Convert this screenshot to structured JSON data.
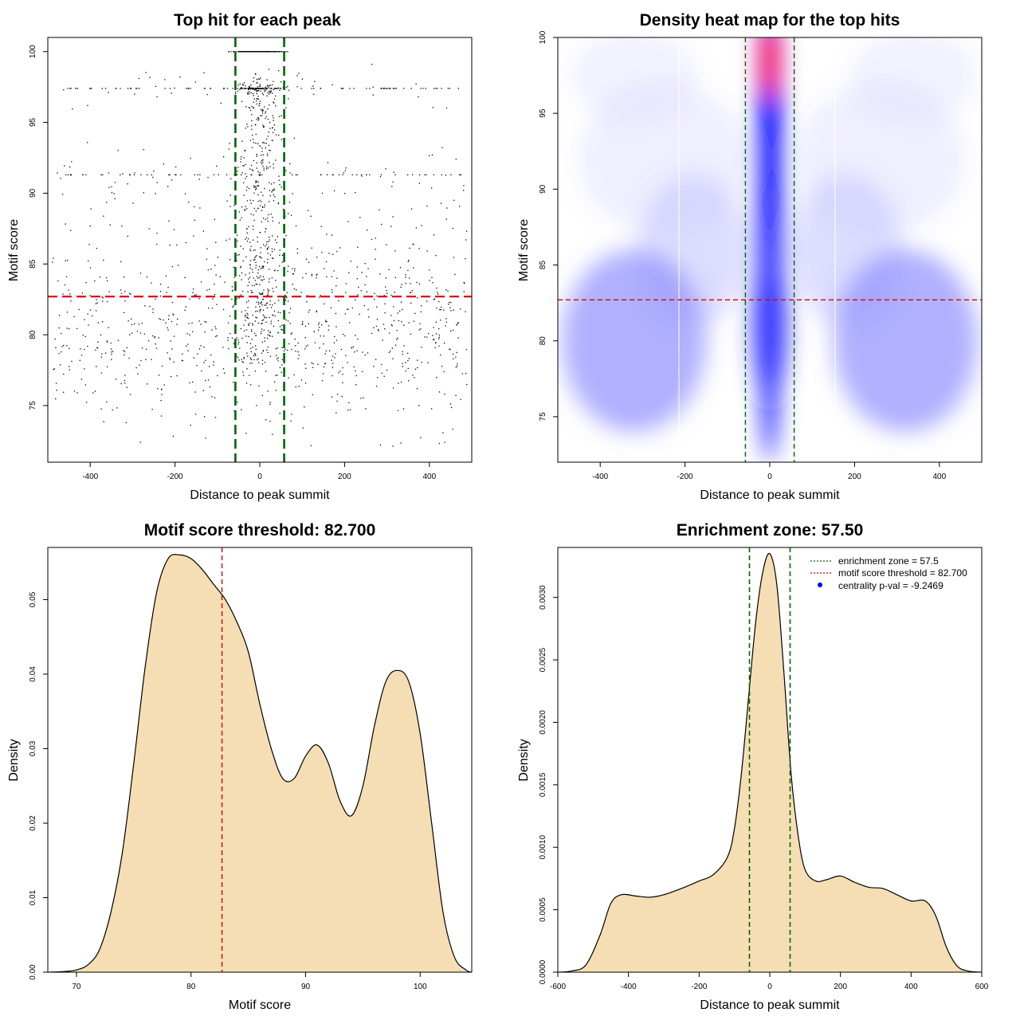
{
  "chart_data": [
    {
      "type": "scatter",
      "title": "Top hit for each peak",
      "xlabel": "Distance to peak summit",
      "ylabel": "Motif score",
      "xlim": [
        -500,
        500
      ],
      "ylim": [
        71,
        101
      ],
      "xticks": [
        -400,
        -200,
        0,
        200,
        400
      ],
      "yticks": [
        75,
        80,
        85,
        90,
        95,
        100
      ],
      "threshold_y": 82.7,
      "enrichment_x": [
        -57.5,
        57.5
      ],
      "point_count_estimate": 2000,
      "note_points": "dense band of points between -57.5 and 57.5; horizontal stripes at scores 100, 97.4, 91.3",
      "colors": {
        "points": "#000000",
        "threshold": "#dd0000",
        "zone": "#006400"
      }
    },
    {
      "type": "heatmap",
      "title": "Density heat map for the top hits",
      "xlabel": "Distance to peak summit",
      "ylabel": "Motif score",
      "xlim": [
        -500,
        500
      ],
      "ylim": [
        72,
        100
      ],
      "xticks": [
        -400,
        -200,
        0,
        200,
        400
      ],
      "yticks": [
        75,
        80,
        85,
        90,
        95,
        100
      ],
      "threshold_y": 82.7,
      "enrichment_x": [
        -57.5,
        57.5
      ],
      "peak": {
        "x": 0,
        "y": 98.5,
        "color": "#ff0000"
      },
      "colors": {
        "low": "#ffffff",
        "mid": "#0000ff",
        "high": "#ff0000",
        "threshold": "#dd0000",
        "zone": "#006400"
      }
    },
    {
      "type": "area",
      "title": "Motif score threshold: 82.700",
      "xlabel": "Motif score",
      "ylabel": "Density",
      "xlim": [
        67.5,
        104.5
      ],
      "ylim": [
        0,
        0.057
      ],
      "xticks": [
        70,
        80,
        90,
        100
      ],
      "yticks": [
        0.0,
        0.01,
        0.02,
        0.03,
        0.04,
        0.05
      ],
      "ytick_labels": [
        "0.00",
        "0.01",
        "0.02",
        "0.03",
        "0.04",
        "0.05"
      ],
      "threshold_x": 82.7,
      "x": [
        67.5,
        69,
        70,
        71,
        72,
        73,
        74,
        75,
        76,
        77,
        78,
        79,
        80,
        81,
        82,
        83,
        84,
        85,
        86,
        87,
        88,
        89,
        90,
        91,
        92,
        93,
        94,
        95,
        96,
        97,
        98,
        99,
        100,
        101,
        102,
        103,
        104,
        104.5
      ],
      "values": [
        0.0,
        0.0001,
        0.0003,
        0.001,
        0.003,
        0.008,
        0.016,
        0.028,
        0.041,
        0.051,
        0.0555,
        0.056,
        0.0555,
        0.054,
        0.052,
        0.05,
        0.047,
        0.043,
        0.036,
        0.03,
        0.026,
        0.026,
        0.029,
        0.0305,
        0.028,
        0.023,
        0.021,
        0.025,
        0.033,
        0.039,
        0.0405,
        0.039,
        0.032,
        0.02,
        0.008,
        0.002,
        0.0003,
        0.0
      ],
      "colors": {
        "fill": "#f5deb3",
        "line": "#000000",
        "threshold": "#dd0000"
      }
    },
    {
      "type": "area",
      "title": "Enrichment zone: 57.50",
      "xlabel": "Distance to peak summit",
      "ylabel": "Density",
      "xlim": [
        -600,
        600
      ],
      "ylim": [
        0,
        0.0034
      ],
      "xticks": [
        -600,
        -400,
        -200,
        0,
        200,
        400,
        600
      ],
      "yticks": [
        0.0,
        0.0005,
        0.001,
        0.0015,
        0.002,
        0.0025,
        0.003
      ],
      "ytick_labels": [
        "0.0000",
        "0.0005",
        "0.0010",
        "0.0015",
        "0.0020",
        "0.0025",
        "0.0030"
      ],
      "enrichment_x": [
        -57.5,
        57.5
      ],
      "x": [
        -600,
        -560,
        -520,
        -480,
        -450,
        -420,
        -380,
        -340,
        -300,
        -250,
        -200,
        -160,
        -120,
        -100,
        -80,
        -60,
        -40,
        -20,
        0,
        20,
        40,
        60,
        80,
        100,
        130,
        160,
        200,
        240,
        280,
        320,
        360,
        400,
        440,
        470,
        500,
        530,
        560,
        600
      ],
      "values": [
        0.0,
        1e-05,
        6e-05,
        0.0003,
        0.00055,
        0.00062,
        0.00061,
        0.0006,
        0.00062,
        0.00067,
        0.00073,
        0.00078,
        0.00092,
        0.00115,
        0.0016,
        0.0022,
        0.0028,
        0.0032,
        0.00335,
        0.0031,
        0.0024,
        0.0016,
        0.0011,
        0.00082,
        0.00073,
        0.00074,
        0.00077,
        0.00072,
        0.00068,
        0.00067,
        0.00062,
        0.00057,
        0.00057,
        0.00045,
        0.0002,
        5e-05,
        1e-05,
        0.0
      ],
      "legend": {
        "placement": "top-right",
        "entries": [
          {
            "label": "enrichment zone = 57.5",
            "color": "#006400",
            "kind": "dotted-line"
          },
          {
            "label": "motif score threshold = 82.700",
            "color": "#dd0000",
            "kind": "dotted-line"
          },
          {
            "label": "centrality p-val = -9.2469",
            "color": "#0000ff",
            "kind": "point"
          }
        ]
      },
      "colors": {
        "fill": "#f5deb3",
        "line": "#000000",
        "zone": "#006400"
      }
    }
  ]
}
